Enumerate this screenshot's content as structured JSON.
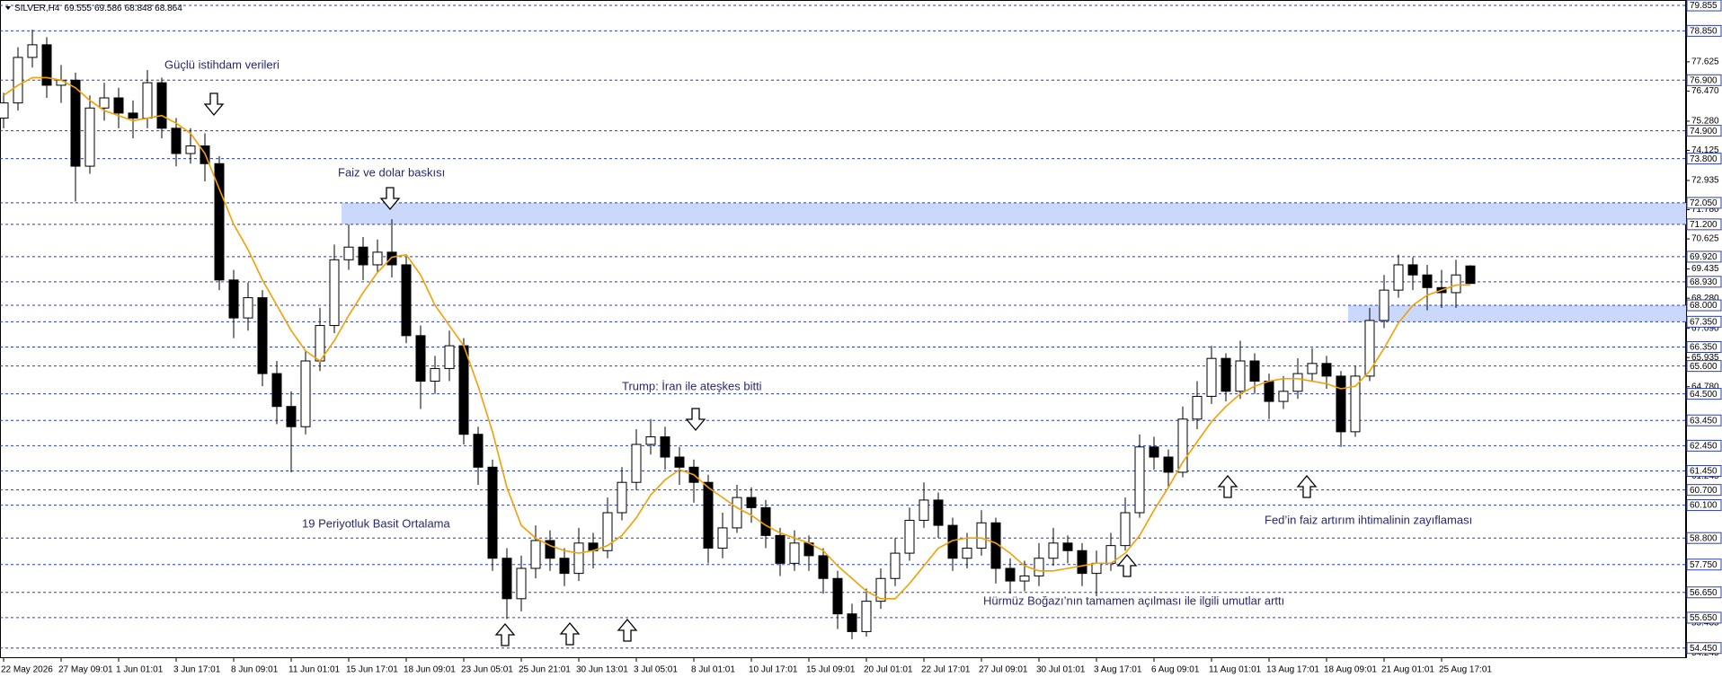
{
  "chart_data": {
    "type": "candlestick",
    "title": "SILVER,H4",
    "ylim": [
      54.05,
      80.07
    ],
    "yticks": [
      77.625,
      {
        "value": 76.47,
        "label": "76.470"
      },
      {
        "value": 75.28,
        "label": "75.280"
      },
      74.125,
      72.935,
      {
        "value": 71.78,
        "label": "71.780"
      },
      70.625,
      69.435,
      {
        "value": 68.28,
        "label": "68.280"
      },
      {
        "value": 67.09,
        "label": "67.090"
      },
      65.935,
      {
        "value": 64.78,
        "label": "64.780"
      },
      61.245,
      55.435,
      54.245
    ],
    "levels": [
      79.855,
      {
        "value": 78.85,
        "label": "78.850"
      },
      {
        "value": 76.9,
        "label": "76.900"
      },
      {
        "value": 74.9,
        "label": "74.900"
      },
      {
        "value": 73.8,
        "label": "73.800"
      },
      {
        "value": 72.05,
        "label": "72.050"
      },
      {
        "value": 71.2,
        "label": "71.200"
      },
      {
        "value": 69.92,
        "label": "69.920"
      },
      {
        "value": 68.93,
        "label": "68.930"
      },
      {
        "value": 68.0,
        "label": "68.000"
      },
      {
        "value": 67.35,
        "label": "67.350"
      },
      {
        "value": 66.35,
        "label": "66.350"
      },
      {
        "value": 65.6,
        "label": "65.600"
      },
      {
        "value": 64.5,
        "label": "64.500"
      },
      {
        "value": 63.45,
        "label": "63.450"
      },
      {
        "value": 62.45,
        "label": "62.450"
      },
      {
        "value": 61.45,
        "label": "61.450"
      },
      {
        "value": 60.7,
        "label": "60.700"
      },
      {
        "value": 60.1,
        "label": "60.100"
      },
      {
        "value": 58.8,
        "label": "58.800"
      },
      {
        "value": 57.75,
        "label": "57.750"
      },
      {
        "value": 56.65,
        "label": "56.650"
      },
      {
        "value": 55.65,
        "label": "55.650"
      },
      {
        "value": 54.45,
        "label": "54.450"
      }
    ],
    "zones": [
      {
        "low": 71.2,
        "high": 72.05,
        "start": 24,
        "color": "#c9d8fb"
      },
      {
        "low": 67.35,
        "high": 68.0,
        "start": 94,
        "color": "#c9d8fb"
      }
    ],
    "categories": [
      "22 May 2026",
      null,
      null,
      null,
      "27 May 09:01",
      null,
      null,
      null,
      "1 Jun 01:01",
      null,
      null,
      null,
      "3 Jun 17:01",
      null,
      null,
      null,
      "8 Jun 09:01",
      null,
      null,
      null,
      "11 Jun 01:01",
      null,
      null,
      null,
      "15 Jun 17:01",
      null,
      null,
      null,
      "18 Jun 09:01",
      null,
      null,
      null,
      "23 Jun 05:01",
      null,
      null,
      null,
      "25 Jun 21:01",
      null,
      null,
      null,
      "30 Jun 13:01",
      null,
      null,
      null,
      "3 Jul 05:01",
      null,
      null,
      null,
      "8 Jul 01:01",
      null,
      null,
      null,
      "10 Jul 17:01",
      null,
      null,
      null,
      "15 Jul 09:01",
      null,
      null,
      null,
      "20 Jul 01:01",
      null,
      null,
      null,
      "22 Jul 17:01",
      null,
      null,
      null,
      "27 Jul 09:01",
      null,
      null,
      null,
      "30 Jul 01:01",
      null,
      null,
      null,
      "3 Aug 17:01",
      null,
      null,
      null,
      "6 Aug 09:01",
      null,
      null,
      null,
      "11 Aug 01:01",
      null,
      null,
      null,
      "13 Aug 17:01",
      null,
      null,
      null,
      "18 Aug 09:01",
      null,
      null,
      null,
      "21 Aug 01:01",
      null,
      null,
      null,
      "25 Aug 17:01",
      null,
      null
    ],
    "candles": [
      [
        75.4,
        76.4,
        75.0,
        76.0
      ],
      [
        76.0,
        78.2,
        75.7,
        77.8
      ],
      [
        77.8,
        78.9,
        77.4,
        78.3
      ],
      [
        78.3,
        78.6,
        76.2,
        76.7
      ],
      [
        76.7,
        77.5,
        76.0,
        76.9
      ],
      [
        76.9,
        77.2,
        72.1,
        73.5
      ],
      [
        73.5,
        76.3,
        73.2,
        75.8
      ],
      [
        75.8,
        76.8,
        75.3,
        76.2
      ],
      [
        76.2,
        76.6,
        75.0,
        75.6
      ],
      [
        75.6,
        76.1,
        74.6,
        75.4
      ],
      [
        75.4,
        77.3,
        75.0,
        76.8
      ],
      [
        76.8,
        77.0,
        74.6,
        75.0
      ],
      [
        75.0,
        75.4,
        73.5,
        74.0
      ],
      [
        74.0,
        75.0,
        73.6,
        74.3
      ],
      [
        74.3,
        74.8,
        72.9,
        73.6
      ],
      [
        73.6,
        73.9,
        68.6,
        69.0
      ],
      [
        69.0,
        69.4,
        66.7,
        67.5
      ],
      [
        67.5,
        68.9,
        67.0,
        68.3
      ],
      [
        68.3,
        68.6,
        64.8,
        65.3
      ],
      [
        65.3,
        65.8,
        63.3,
        64.0
      ],
      [
        64.0,
        64.6,
        61.4,
        63.2
      ],
      [
        63.2,
        66.2,
        62.9,
        65.8
      ],
      [
        65.8,
        67.9,
        65.4,
        67.2
      ],
      [
        67.2,
        70.4,
        66.9,
        69.8
      ],
      [
        69.8,
        71.2,
        69.4,
        70.3
      ],
      [
        70.3,
        70.7,
        69.0,
        69.6
      ],
      [
        69.6,
        70.6,
        69.3,
        70.1
      ],
      [
        70.1,
        71.4,
        69.1,
        69.6
      ],
      [
        69.6,
        69.9,
        66.5,
        66.8
      ],
      [
        66.8,
        67.2,
        63.9,
        65.0
      ],
      [
        65.0,
        66.0,
        64.5,
        65.5
      ],
      [
        65.5,
        67.0,
        65.0,
        66.4
      ],
      [
        66.4,
        66.7,
        62.5,
        62.9
      ],
      [
        62.9,
        63.2,
        60.9,
        61.6
      ],
      [
        61.6,
        61.9,
        57.5,
        58.0
      ],
      [
        58.0,
        58.4,
        55.6,
        56.4
      ],
      [
        56.4,
        58.1,
        55.9,
        57.6
      ],
      [
        57.6,
        59.3,
        57.2,
        58.7
      ],
      [
        58.7,
        59.1,
        57.5,
        58.0
      ],
      [
        58.0,
        58.4,
        56.9,
        57.4
      ],
      [
        57.4,
        59.2,
        57.1,
        58.6
      ],
      [
        58.6,
        59.0,
        57.6,
        58.3
      ],
      [
        58.3,
        60.4,
        58.0,
        59.8
      ],
      [
        59.8,
        61.6,
        59.5,
        61.0
      ],
      [
        61.0,
        63.1,
        60.7,
        62.5
      ],
      [
        62.5,
        63.5,
        62.1,
        62.8
      ],
      [
        62.8,
        63.2,
        61.5,
        62.0
      ],
      [
        62.0,
        62.4,
        60.9,
        61.6
      ],
      [
        61.6,
        61.9,
        60.2,
        61.0
      ],
      [
        61.0,
        61.3,
        57.8,
        58.4
      ],
      [
        58.4,
        59.8,
        58.0,
        59.2
      ],
      [
        59.2,
        60.9,
        59.0,
        60.4
      ],
      [
        60.4,
        60.8,
        59.4,
        60.0
      ],
      [
        60.0,
        60.3,
        58.4,
        58.9
      ],
      [
        58.9,
        59.2,
        57.3,
        57.8
      ],
      [
        57.8,
        59.1,
        57.5,
        58.6
      ],
      [
        58.6,
        58.9,
        57.5,
        58.1
      ],
      [
        58.1,
        58.4,
        56.6,
        57.2
      ],
      [
        57.2,
        57.5,
        55.2,
        55.8
      ],
      [
        55.8,
        56.2,
        54.8,
        55.1
      ],
      [
        55.1,
        56.8,
        54.9,
        56.3
      ],
      [
        56.3,
        57.6,
        56.0,
        57.2
      ],
      [
        57.2,
        58.8,
        56.9,
        58.2
      ],
      [
        58.2,
        60.0,
        57.9,
        59.5
      ],
      [
        59.5,
        61.0,
        59.2,
        60.3
      ],
      [
        60.3,
        60.6,
        58.8,
        59.3
      ],
      [
        59.3,
        59.6,
        57.5,
        58.0
      ],
      [
        58.0,
        59.0,
        57.6,
        58.4
      ],
      [
        58.4,
        59.9,
        58.1,
        59.4
      ],
      [
        59.4,
        59.6,
        57.0,
        57.6
      ],
      [
        57.6,
        58.0,
        56.6,
        57.1
      ],
      [
        57.1,
        57.9,
        56.7,
        57.3
      ],
      [
        57.3,
        58.6,
        56.9,
        58.0
      ],
      [
        58.0,
        59.2,
        57.7,
        58.6
      ],
      [
        58.6,
        58.9,
        57.8,
        58.3
      ],
      [
        58.3,
        58.6,
        56.9,
        57.4
      ],
      [
        57.4,
        58.3,
        56.5,
        57.8
      ],
      [
        57.8,
        59.0,
        57.5,
        58.5
      ],
      [
        58.5,
        60.4,
        58.3,
        59.8
      ],
      [
        59.8,
        62.9,
        59.6,
        62.4
      ],
      [
        62.4,
        62.8,
        61.5,
        62.0
      ],
      [
        62.0,
        62.3,
        60.8,
        61.4
      ],
      [
        61.4,
        64.0,
        61.2,
        63.5
      ],
      [
        63.5,
        65.0,
        63.1,
        64.4
      ],
      [
        64.4,
        66.4,
        64.1,
        65.9
      ],
      [
        65.9,
        66.1,
        64.2,
        64.6
      ],
      [
        64.6,
        66.6,
        64.3,
        65.8
      ],
      [
        65.8,
        66.1,
        64.5,
        65.0
      ],
      [
        65.0,
        65.3,
        63.5,
        64.2
      ],
      [
        64.2,
        65.2,
        63.9,
        64.6
      ],
      [
        64.6,
        65.9,
        64.3,
        65.3
      ],
      [
        65.3,
        66.3,
        65.0,
        65.7
      ],
      [
        65.7,
        66.0,
        64.7,
        65.2
      ],
      [
        65.2,
        65.4,
        62.4,
        63.0
      ],
      [
        63.0,
        65.6,
        62.8,
        65.2
      ],
      [
        65.2,
        67.9,
        65.0,
        67.4
      ],
      [
        67.4,
        69.2,
        67.1,
        68.6
      ],
      [
        68.6,
        70.0,
        68.3,
        69.6
      ],
      [
        69.6,
        69.9,
        68.6,
        69.2
      ],
      [
        69.2,
        69.6,
        67.8,
        68.7
      ],
      [
        68.7,
        69.4,
        67.9,
        68.5
      ],
      [
        68.5,
        69.8,
        67.9,
        69.2
      ],
      [
        69.555,
        69.586,
        68.848,
        68.864
      ]
    ],
    "ma": {
      "name": "19 Periyotluk Basit Ortalama",
      "color": "#f5a000",
      "values": [
        76.3,
        76.7,
        77.0,
        77.0,
        76.9,
        76.6,
        76.1,
        75.7,
        75.5,
        75.3,
        75.4,
        75.5,
        75.2,
        74.8,
        74.0,
        72.6,
        71.2,
        70.2,
        69.0,
        68.0,
        67.0,
        66.2,
        65.8,
        66.6,
        67.6,
        68.5,
        69.3,
        69.9,
        70.0,
        69.2,
        68.0,
        67.2,
        66.4,
        64.8,
        63.0,
        60.8,
        59.3,
        58.8,
        58.5,
        58.3,
        58.2,
        58.3,
        58.5,
        58.9,
        59.6,
        60.5,
        61.1,
        61.5,
        61.3,
        60.8,
        60.4,
        60.0,
        59.7,
        59.3,
        59.0,
        58.8,
        58.6,
        58.3,
        57.7,
        57.2,
        56.7,
        56.4,
        56.4,
        57.0,
        57.7,
        58.4,
        58.7,
        58.8,
        58.8,
        58.6,
        58.2,
        57.7,
        57.5,
        57.5,
        57.6,
        57.7,
        57.8,
        57.8,
        58.2,
        58.9,
        59.9,
        60.8,
        61.8,
        62.6,
        63.4,
        64.0,
        64.5,
        64.8,
        65.0,
        65.1,
        65.1,
        65.0,
        64.9,
        64.7,
        64.8,
        65.4,
        66.3,
        67.3,
        68.0,
        68.4,
        68.6,
        68.8,
        68.8
      ]
    },
    "annotations": [
      "Güçlü istihdam verileri",
      "Faiz ve dolar baskısı",
      "Trump: İran ile ateşkes bitti",
      "Fed’in faiz artırım ihtimalinin zayıflaması",
      "Hürmüz Boğazı’nın tamamen açılması ile ilgili umutlar arttı"
    ]
  }
}
